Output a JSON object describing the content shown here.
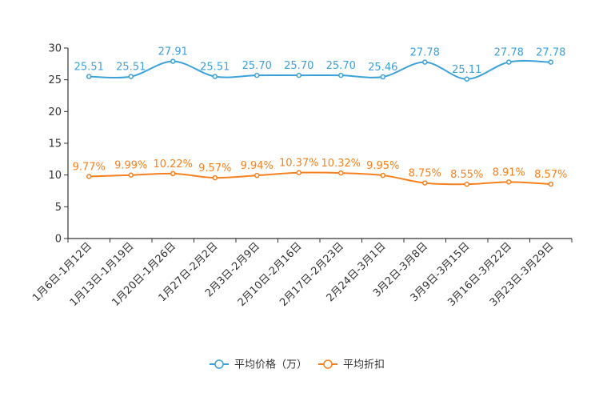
{
  "chart_data": {
    "type": "line",
    "categories": [
      "1月6日-1月12日",
      "1月13日-1月19日",
      "1月20日-1月26日",
      "1月27日-2月2日",
      "2月3日-2月9日",
      "2月10日-2月16日",
      "2月17日-2月23日",
      "2月24日-3月1日",
      "3月2日-3月8日",
      "3月9日-3月15日",
      "3月16日-3月22日",
      "3月23日-3月29日"
    ],
    "ylim": [
      0,
      30
    ],
    "yticks": [
      0,
      5,
      10,
      15,
      20,
      25,
      30
    ],
    "series": [
      {
        "name": "平均价格（万）",
        "color": "#3ba1d8",
        "values": [
          25.51,
          25.51,
          27.91,
          25.51,
          25.7,
          25.7,
          25.7,
          25.46,
          27.78,
          25.11,
          27.78,
          27.78
        ],
        "labels": [
          "25.51",
          "25.51",
          "27.91",
          "25.51",
          "25.70",
          "25.70",
          "25.70",
          "25.46",
          "27.78",
          "25.11",
          "27.78",
          "27.78"
        ]
      },
      {
        "name": "平均折扣",
        "color": "#f7811e",
        "values": [
          9.77,
          9.99,
          10.22,
          9.57,
          9.94,
          10.37,
          10.32,
          9.95,
          8.75,
          8.55,
          8.91,
          8.57
        ],
        "labels": [
          "9.77%",
          "9.99%",
          "10.22%",
          "9.57%",
          "9.94%",
          "10.37%",
          "10.32%",
          "9.95%",
          "8.75%",
          "8.55%",
          "8.91%",
          "8.57%"
        ]
      }
    ]
  }
}
